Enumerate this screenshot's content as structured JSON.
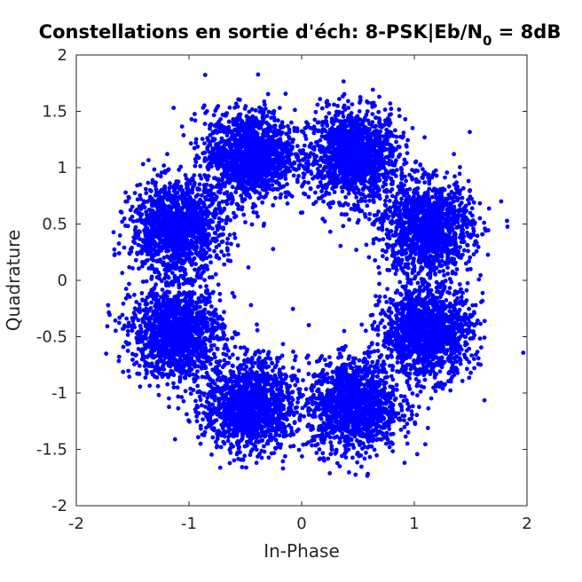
{
  "chart_data": {
    "type": "scatter",
    "title": {
      "prefix": "Constellations en sortie d'éch: 8-PSK|Eb/N",
      "subscript": "0",
      "suffix": " = 8dB"
    },
    "xlabel": "In-Phase",
    "ylabel": "Quadrature",
    "xlim": [
      -2,
      2
    ],
    "ylim": [
      -2,
      2
    ],
    "xticks": [
      -2,
      -1,
      0,
      1,
      2
    ],
    "yticks": [
      -2,
      -1.5,
      -1,
      -0.5,
      0,
      0.5,
      1,
      1.5,
      2
    ],
    "xtick_labels": [
      "-2",
      "-1",
      "0",
      "1",
      "2"
    ],
    "ytick_labels": [
      "-2",
      "-1.5",
      "-1",
      "-0.5",
      "0",
      "0.5",
      "1",
      "1.5",
      "2"
    ],
    "grid": false,
    "box": true,
    "marker_color": "#0000ff",
    "series": [
      {
        "cluster_centers": [
          {
            "x": 0.46,
            "y": 1.11
          },
          {
            "x": -0.46,
            "y": 1.11
          },
          {
            "x": -1.11,
            "y": 0.46
          },
          {
            "x": -1.11,
            "y": -0.46
          },
          {
            "x": -0.46,
            "y": -1.11
          },
          {
            "x": 0.46,
            "y": -1.11
          },
          {
            "x": 1.11,
            "y": -0.46
          },
          {
            "x": 1.11,
            "y": 0.46
          }
        ],
        "noise_std": 0.2,
        "outliers": [
          {
            "x": 0.22,
            "y": 1.58
          },
          {
            "x": 0.92,
            "y": 1.43
          },
          {
            "x": -0.72,
            "y": 1.43
          },
          {
            "x": -1.62,
            "y": 0.24
          },
          {
            "x": -1.54,
            "y": -0.45
          },
          {
            "x": 1.5,
            "y": 0.38
          },
          {
            "x": 1.46,
            "y": -0.39
          },
          {
            "x": 0.2,
            "y": -1.6
          },
          {
            "x": 0.75,
            "y": -1.45
          },
          {
            "x": -0.75,
            "y": -1.47
          },
          {
            "x": 0.03,
            "y": 1.35
          },
          {
            "x": 1.35,
            "y": 0.7
          }
        ]
      }
    ]
  }
}
